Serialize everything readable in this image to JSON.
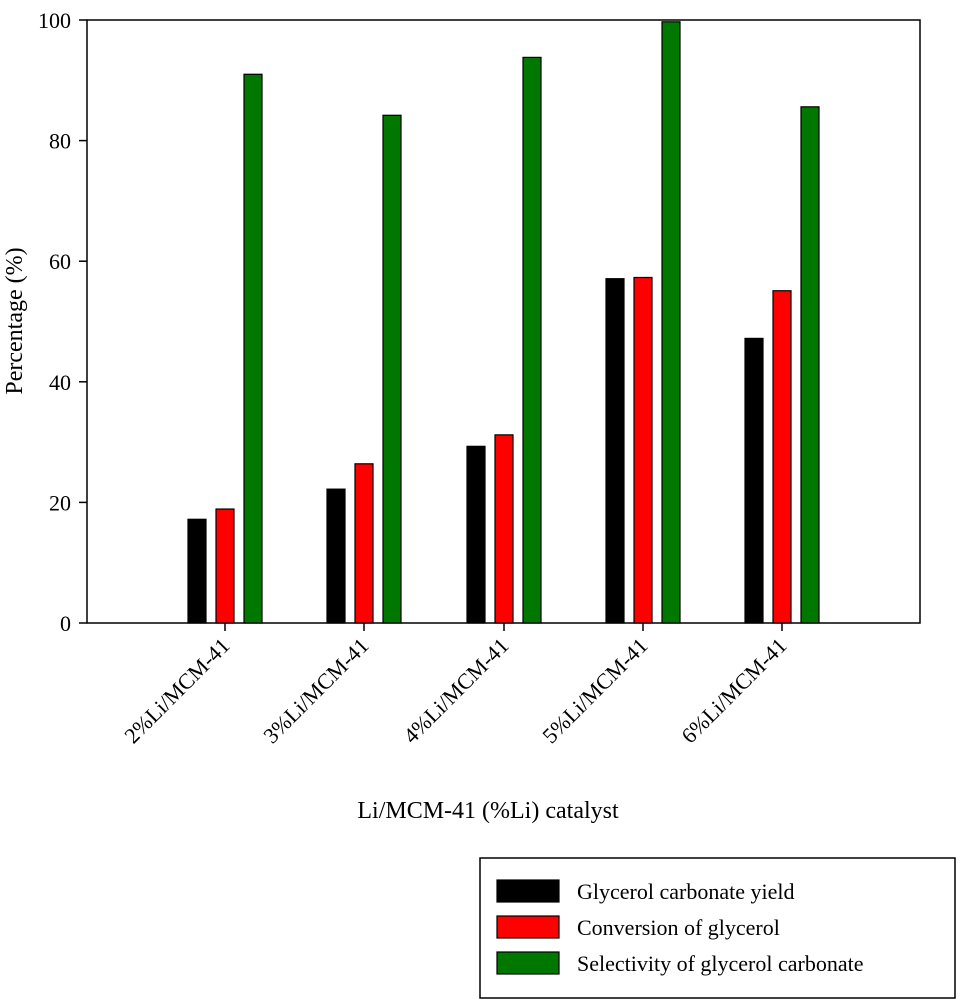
{
  "chart_data": {
    "type": "bar",
    "title": "",
    "xlabel": "Li/MCM-41 (%Li) catalyst",
    "ylabel": "Percentage (%)",
    "ylim": [
      0,
      100
    ],
    "yticks": [
      "0",
      "20",
      "40",
      "60",
      "80",
      "100"
    ],
    "grid": false,
    "legend_position": "bottom-right, outside plot",
    "categories": [
      "2%Li/MCM-41",
      "3%Li/MCM-41",
      "4%Li/MCM-41",
      "5%Li/MCM-41",
      "6%Li/MCM-41"
    ],
    "series": [
      {
        "name": "Glycerol carbonate yield",
        "color": "#000000",
        "values": [
          17.2,
          22.2,
          29.3,
          57.1,
          47.2
        ]
      },
      {
        "name": "Conversion of glycerol",
        "color": "#ff0000",
        "values": [
          18.9,
          26.4,
          31.2,
          57.3,
          55.1
        ]
      },
      {
        "name": "Selectivity of glycerol carbonate",
        "color": "#007800",
        "values": [
          91.0,
          84.2,
          93.8,
          99.7,
          85.6
        ]
      }
    ]
  }
}
